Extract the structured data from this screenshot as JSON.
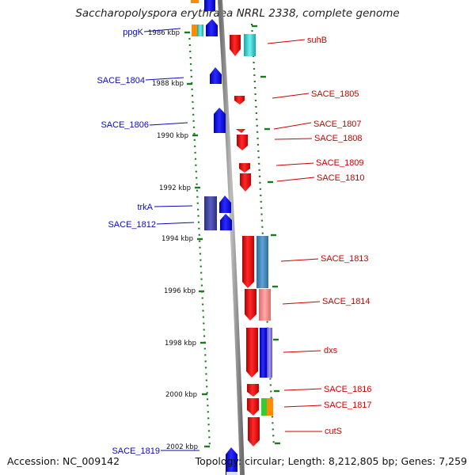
{
  "title": "Saccharopolyspora erythraea NRRL 2338, complete genome",
  "footer": {
    "accession": "Accession: NC_009142",
    "topology": "Topology: circular; Length: 8,212,805 bp; Genes: 7,259"
  },
  "colors": {
    "forward_strand_label": "#0b0bb4",
    "reverse_strand_label": "#cc0000",
    "backbone": "#8a8a8a",
    "tick": "#1c7a1c"
  },
  "ticks": [
    "1986 kbp",
    "1988 kbp",
    "1990 kbp",
    "1992 kbp",
    "1994 kbp",
    "1996 kbp",
    "1998 kbp",
    "2000 kbp",
    "2002 kbp"
  ],
  "genes_left": [
    {
      "name": "ppgK"
    },
    {
      "name": "SACE_1804"
    },
    {
      "name": "SACE_1806"
    },
    {
      "name": "trkA"
    },
    {
      "name": "SACE_1812"
    },
    {
      "name": "SACE_1819"
    }
  ],
  "genes_right": [
    {
      "name": "suhB"
    },
    {
      "name": "SACE_1805"
    },
    {
      "name": "SACE_1807"
    },
    {
      "name": "SACE_1808"
    },
    {
      "name": "SACE_1809"
    },
    {
      "name": "SACE_1810"
    },
    {
      "name": "SACE_1813"
    },
    {
      "name": "SACE_1814"
    },
    {
      "name": "dxs"
    },
    {
      "name": "SACE_1816"
    },
    {
      "name": "SACE_1817"
    },
    {
      "name": "cutS"
    }
  ]
}
